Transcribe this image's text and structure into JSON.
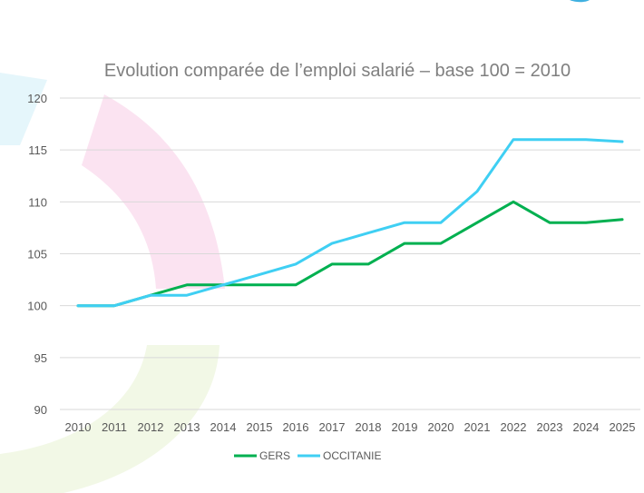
{
  "chart_data": {
    "type": "line",
    "title": "Evolution comparée de l’emploi salarié – base 100 = 2010",
    "x": [
      "2010",
      "2011",
      "2012",
      "2013",
      "2014",
      "2015",
      "2016",
      "2017",
      "2018",
      "2019",
      "2020",
      "2021",
      "2022",
      "2023",
      "2024",
      "2025"
    ],
    "series": [
      {
        "name": "GERS",
        "color": "#00b050",
        "values": [
          100,
          100,
          101,
          102,
          102,
          102,
          102,
          104,
          104,
          106,
          106,
          108,
          110,
          108,
          108,
          108.3
        ]
      },
      {
        "name": "OCCITANIE",
        "color": "#3fcff3",
        "values": [
          100,
          100,
          101,
          101,
          102,
          103,
          104,
          106,
          107,
          108,
          108,
          111,
          116,
          116,
          116,
          115.8
        ]
      }
    ],
    "ylim": [
      90,
      120
    ],
    "yticks": [
      "90",
      "95",
      "100",
      "105",
      "110",
      "115",
      "120"
    ],
    "grid": true,
    "legend_position": "bottom"
  }
}
